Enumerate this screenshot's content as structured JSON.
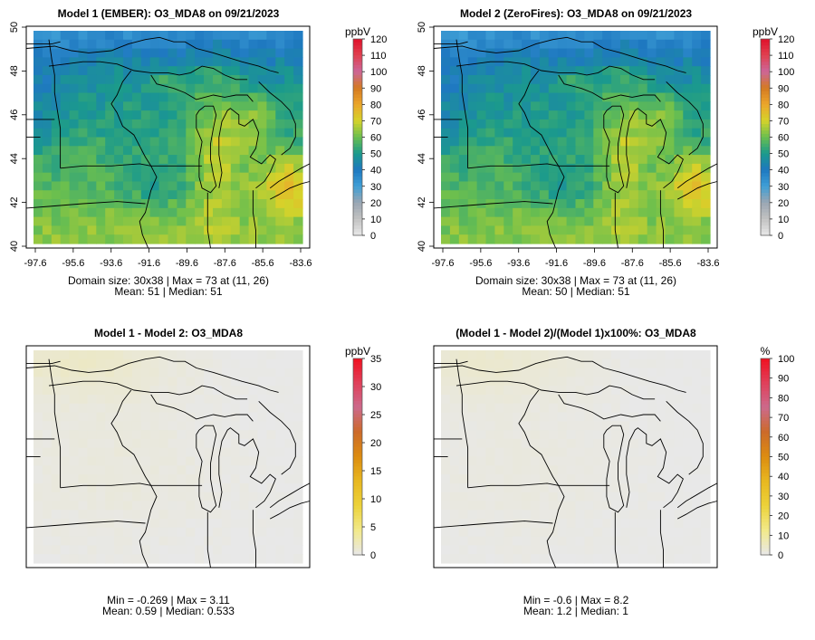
{
  "panels": [
    {
      "title": "Model 1 (EMBER): O3_MDA8 on 09/21/2023",
      "map_kind": "ozone",
      "variant": 0,
      "axes_shown": true,
      "x_ticks": [
        "-97.6",
        "-95.6",
        "-93.6",
        "-91.6",
        "-89.6",
        "-87.6",
        "-85.6",
        "-83.6"
      ],
      "y_ticks": [
        "40",
        "42",
        "44",
        "46",
        "48",
        "50"
      ],
      "stats_line1": "Domain size: 30x38 | Max = 73 at (11, 26)",
      "stats_line2": "Mean: 51 |  Median: 51",
      "legend": {
        "unit": "ppbV",
        "ticks": [
          "0",
          "10",
          "20",
          "30",
          "40",
          "50",
          "60",
          "70",
          "80",
          "90",
          "100",
          "110",
          "120"
        ],
        "colors": [
          "#e8e8e8",
          "#c2c2c2",
          "#9aa6b2",
          "#3f9fd6",
          "#1e78c0",
          "#1b9a8c",
          "#6bbf4e",
          "#d6d32a",
          "#eba52b",
          "#d47a22",
          "#cc6699",
          "#e04050",
          "#e0102a"
        ]
      }
    },
    {
      "title": "Model 2 (ZeroFires): O3_MDA8 on 09/21/2023",
      "map_kind": "ozone",
      "variant": 1,
      "axes_shown": true,
      "x_ticks": [
        "-97.6",
        "-95.6",
        "-93.6",
        "-91.6",
        "-89.6",
        "-87.6",
        "-85.6",
        "-83.6"
      ],
      "y_ticks": [
        "40",
        "42",
        "44",
        "46",
        "48",
        "50"
      ],
      "stats_line1": "Domain size: 30x38 | Max = 73 at (11, 26)",
      "stats_line2": "Mean: 50 |  Median: 51",
      "legend": {
        "unit": "ppbV",
        "ticks": [
          "0",
          "10",
          "20",
          "30",
          "40",
          "50",
          "60",
          "70",
          "80",
          "90",
          "100",
          "110",
          "120"
        ],
        "colors": [
          "#e8e8e8",
          "#c2c2c2",
          "#9aa6b2",
          "#3f9fd6",
          "#1e78c0",
          "#1b9a8c",
          "#6bbf4e",
          "#d6d32a",
          "#eba52b",
          "#d47a22",
          "#cc6699",
          "#e04050",
          "#e0102a"
        ]
      }
    },
    {
      "title": "Model 1 - Model 2: O3_MDA8",
      "map_kind": "diff",
      "variant": 2,
      "axes_shown": false,
      "x_ticks": [],
      "y_ticks": [],
      "stats_line1": "Min = -0.269 | Max = 3.11",
      "stats_line2": "Mean: 0.59 |  Median: 0.533",
      "legend": {
        "unit": "ppbV",
        "ticks": [
          "0",
          "5",
          "10",
          "15",
          "20",
          "25",
          "30",
          "35"
        ],
        "colors": [
          "#e8e8e8",
          "#f2e98a",
          "#ecd23a",
          "#e8b820",
          "#dc8c10",
          "#cc6a2a",
          "#cc6a8c",
          "#e0405a",
          "#f01020"
        ]
      }
    },
    {
      "title": "(Model 1 - Model 2)/(Model 1)x100%: O3_MDA8",
      "map_kind": "pct",
      "variant": 3,
      "axes_shown": false,
      "x_ticks": [],
      "y_ticks": [],
      "stats_line1": "Min = -0.6 | Max = 8.2",
      "stats_line2": "Mean: 1.2 |  Median: 1",
      "legend": {
        "unit": "%",
        "ticks": [
          "0",
          "10",
          "20",
          "30",
          "40",
          "50",
          "60",
          "70",
          "80",
          "90",
          "100"
        ],
        "colors": [
          "#e8e8e8",
          "#f2e98a",
          "#ecd23a",
          "#e8b820",
          "#dc8c10",
          "#cc6a2a",
          "#cc6a8c",
          "#e0405a",
          "#f01020"
        ]
      }
    }
  ]
}
